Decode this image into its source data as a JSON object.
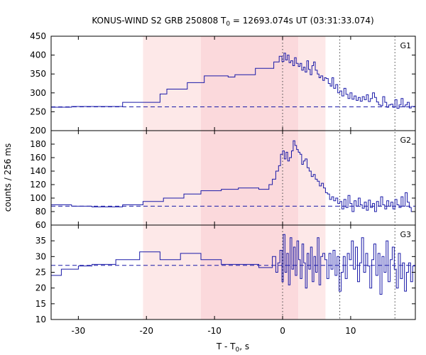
{
  "chart_data": {
    "type": "line",
    "title_main": "KONUS-WIND S2 GRB 250808 T",
    "title_sub": "0",
    "title_rest": " = 12693.074s UT (03:31:33.074)",
    "xlabel_main": "T - T",
    "xlabel_sub": "0",
    "xlabel_rest": ", s",
    "ylabel": "counts / 256 ms",
    "xlim": [
      -34,
      19.5
    ],
    "x_ticks": [
      -30,
      -20,
      -10,
      0,
      10
    ],
    "shaded_regions": [
      {
        "x": [
          -20.5,
          -12
        ],
        "color": "#fde8e8"
      },
      {
        "x": [
          -12,
          0
        ],
        "color": "#fbd9dc"
      },
      {
        "x": [
          0,
          2.3
        ],
        "color": "#fbd9dc"
      },
      {
        "x": [
          2.3,
          6.3
        ],
        "color": "#fde8e8"
      }
    ],
    "vertical_lines": [
      0,
      8.4,
      16.5
    ],
    "panels": [
      {
        "name": "G1",
        "ylim": [
          200,
          450
        ],
        "y_ticks": [
          200,
          250,
          300,
          350,
          400,
          450
        ],
        "background": 263,
        "steps": [
          [
            -34,
            262
          ],
          [
            -31,
            264
          ],
          [
            -23.5,
            275
          ],
          [
            -18,
            297
          ],
          [
            -17,
            310
          ],
          [
            -14,
            327
          ],
          [
            -11.5,
            345
          ],
          [
            -8,
            342
          ],
          [
            -7,
            348
          ],
          [
            -4,
            365
          ],
          [
            -1.3,
            382
          ],
          [
            -0.5,
            397
          ],
          [
            -0.1,
            383
          ],
          [
            0.2,
            405
          ],
          [
            0.45,
            387
          ],
          [
            0.7,
            400
          ],
          [
            0.95,
            380
          ],
          [
            1.2,
            385
          ],
          [
            1.5,
            372
          ],
          [
            1.75,
            393
          ],
          [
            2.0,
            378
          ],
          [
            2.3,
            370
          ],
          [
            2.55,
            378
          ],
          [
            2.8,
            360
          ],
          [
            3.05,
            368
          ],
          [
            3.3,
            355
          ],
          [
            3.55,
            385
          ],
          [
            3.8,
            362
          ],
          [
            4.05,
            348
          ],
          [
            4.3,
            372
          ],
          [
            4.55,
            382
          ],
          [
            4.8,
            360
          ],
          [
            5.1,
            350
          ],
          [
            5.35,
            340
          ],
          [
            5.6,
            345
          ],
          [
            5.9,
            333
          ],
          [
            6.15,
            340
          ],
          [
            6.4,
            338
          ],
          [
            6.7,
            325
          ],
          [
            7.0,
            318
          ],
          [
            7.25,
            340
          ],
          [
            7.5,
            312
          ],
          [
            7.8,
            322
          ],
          [
            8.1,
            300
          ],
          [
            8.4,
            305
          ],
          [
            8.7,
            292
          ],
          [
            9.0,
            312
          ],
          [
            9.3,
            296
          ],
          [
            9.6,
            285
          ],
          [
            9.9,
            300
          ],
          [
            10.2,
            283
          ],
          [
            10.5,
            292
          ],
          [
            10.8,
            280
          ],
          [
            11.1,
            288
          ],
          [
            11.4,
            278
          ],
          [
            11.7,
            290
          ],
          [
            12.0,
            282
          ],
          [
            12.3,
            295
          ],
          [
            12.6,
            277
          ],
          [
            12.9,
            285
          ],
          [
            13.2,
            300
          ],
          [
            13.5,
            288
          ],
          [
            13.8,
            276
          ],
          [
            14.1,
            268
          ],
          [
            14.4,
            266
          ],
          [
            14.7,
            290
          ],
          [
            15.0,
            275
          ],
          [
            15.3,
            262
          ],
          [
            15.6,
            268
          ],
          [
            15.9,
            270
          ],
          [
            16.2,
            262
          ],
          [
            16.5,
            282
          ],
          [
            16.8,
            259
          ],
          [
            17.1,
            268
          ],
          [
            17.4,
            285
          ],
          [
            17.7,
            263
          ],
          [
            18.0,
            268
          ],
          [
            18.3,
            275
          ],
          [
            18.6,
            260
          ],
          [
            18.9,
            264
          ],
          [
            19.5,
            264
          ]
        ]
      },
      {
        "name": "G2",
        "ylim": [
          60,
          200
        ],
        "y_ticks": [
          60,
          80,
          100,
          120,
          140,
          160,
          180
        ],
        "background": 88,
        "steps": [
          [
            -34,
            90
          ],
          [
            -31,
            88
          ],
          [
            -28,
            87
          ],
          [
            -23.5,
            90
          ],
          [
            -20.5,
            95
          ],
          [
            -17.5,
            100
          ],
          [
            -14.5,
            106
          ],
          [
            -12,
            111
          ],
          [
            -9,
            113
          ],
          [
            -6.5,
            115
          ],
          [
            -3.5,
            113
          ],
          [
            -2,
            120
          ],
          [
            -1.5,
            128
          ],
          [
            -1.0,
            140
          ],
          [
            -0.6,
            148
          ],
          [
            -0.3,
            165
          ],
          [
            0.0,
            170
          ],
          [
            0.25,
            158
          ],
          [
            0.5,
            168
          ],
          [
            0.75,
            155
          ],
          [
            1.0,
            160
          ],
          [
            1.3,
            170
          ],
          [
            1.55,
            185
          ],
          [
            1.8,
            178
          ],
          [
            2.05,
            172
          ],
          [
            2.3,
            168
          ],
          [
            2.55,
            165
          ],
          [
            2.8,
            150
          ],
          [
            3.05,
            155
          ],
          [
            3.3,
            158
          ],
          [
            3.6,
            145
          ],
          [
            3.9,
            140
          ],
          [
            4.2,
            132
          ],
          [
            4.5,
            135
          ],
          [
            4.8,
            128
          ],
          [
            5.1,
            125
          ],
          [
            5.4,
            118
          ],
          [
            5.7,
            122
          ],
          [
            6.0,
            115
          ],
          [
            6.3,
            108
          ],
          [
            6.6,
            106
          ],
          [
            6.9,
            98
          ],
          [
            7.2,
            102
          ],
          [
            7.5,
            96
          ],
          [
            7.8,
            100
          ],
          [
            8.1,
            92
          ],
          [
            8.4,
            95
          ],
          [
            8.7,
            84
          ],
          [
            9.0,
            98
          ],
          [
            9.3,
            86
          ],
          [
            9.6,
            104
          ],
          [
            9.9,
            92
          ],
          [
            10.2,
            80
          ],
          [
            10.5,
            96
          ],
          [
            10.8,
            88
          ],
          [
            11.1,
            100
          ],
          [
            11.4,
            90
          ],
          [
            11.7,
            85
          ],
          [
            12.0,
            94
          ],
          [
            12.3,
            82
          ],
          [
            12.6,
            97
          ],
          [
            12.9,
            86
          ],
          [
            13.2,
            92
          ],
          [
            13.5,
            80
          ],
          [
            13.8,
            95
          ],
          [
            14.1,
            88
          ],
          [
            14.4,
            102
          ],
          [
            14.7,
            90
          ],
          [
            15.0,
            84
          ],
          [
            15.3,
            96
          ],
          [
            15.6,
            88
          ],
          [
            15.9,
            94
          ],
          [
            16.2,
            84
          ],
          [
            16.5,
            98
          ],
          [
            16.8,
            90
          ],
          [
            17.1,
            86
          ],
          [
            17.4,
            102
          ],
          [
            17.7,
            88
          ],
          [
            18.0,
            108
          ],
          [
            18.3,
            94
          ],
          [
            18.6,
            86
          ],
          [
            18.9,
            80
          ],
          [
            19.5,
            80
          ]
        ]
      },
      {
        "name": "G3",
        "ylim": [
          10,
          40
        ],
        "y_ticks": [
          10,
          15,
          20,
          25,
          30,
          35
        ],
        "background": 27.2,
        "steps": [
          [
            -34,
            24
          ],
          [
            -32.5,
            26
          ],
          [
            -30,
            27
          ],
          [
            -28,
            27.5
          ],
          [
            -24.5,
            29
          ],
          [
            -21,
            31.5
          ],
          [
            -18,
            29
          ],
          [
            -15,
            31
          ],
          [
            -12,
            29
          ],
          [
            -9,
            27.5
          ],
          [
            -6.5,
            27.5
          ],
          [
            -3.5,
            26.5
          ],
          [
            -1.5,
            30
          ],
          [
            -1.0,
            25
          ],
          [
            -0.7,
            28
          ],
          [
            -0.4,
            32
          ],
          [
            -0.1,
            22
          ],
          [
            0.1,
            37
          ],
          [
            0.35,
            25
          ],
          [
            0.6,
            31
          ],
          [
            0.85,
            21
          ],
          [
            1.1,
            36
          ],
          [
            1.35,
            26
          ],
          [
            1.6,
            33
          ],
          [
            1.85,
            24
          ],
          [
            2.1,
            35
          ],
          [
            2.35,
            29
          ],
          [
            2.6,
            23
          ],
          [
            2.85,
            34
          ],
          [
            3.1,
            28
          ],
          [
            3.35,
            20
          ],
          [
            3.6,
            31
          ],
          [
            3.85,
            26
          ],
          [
            4.1,
            33
          ],
          [
            4.35,
            22
          ],
          [
            4.6,
            30
          ],
          [
            4.85,
            25
          ],
          [
            5.1,
            36
          ],
          [
            5.35,
            21
          ],
          [
            5.6,
            30
          ],
          [
            5.9,
            31
          ],
          [
            6.2,
            29
          ],
          [
            6.5,
            23
          ],
          [
            6.8,
            31
          ],
          [
            7.1,
            26
          ],
          [
            7.4,
            32
          ],
          [
            7.7,
            24
          ],
          [
            8.0,
            30
          ],
          [
            8.3,
            19
          ],
          [
            8.6,
            25
          ],
          [
            8.9,
            30
          ],
          [
            9.2,
            23
          ],
          [
            9.5,
            31
          ],
          [
            9.8,
            29
          ],
          [
            10.1,
            35
          ],
          [
            10.4,
            26
          ],
          [
            10.7,
            33
          ],
          [
            11.0,
            22
          ],
          [
            11.3,
            28
          ],
          [
            11.6,
            36
          ],
          [
            11.9,
            25
          ],
          [
            12.2,
            31
          ],
          [
            12.5,
            27
          ],
          [
            12.8,
            20
          ],
          [
            13.1,
            29
          ],
          [
            13.4,
            34
          ],
          [
            13.7,
            24
          ],
          [
            14.0,
            31
          ],
          [
            14.3,
            18
          ],
          [
            14.6,
            30
          ],
          [
            14.9,
            25
          ],
          [
            15.2,
            35
          ],
          [
            15.5,
            22
          ],
          [
            15.8,
            29
          ],
          [
            16.1,
            33
          ],
          [
            16.4,
            26
          ],
          [
            16.7,
            20
          ],
          [
            17.0,
            31
          ],
          [
            17.3,
            23
          ],
          [
            17.6,
            28
          ],
          [
            17.9,
            19
          ],
          [
            18.2,
            25
          ],
          [
            18.5,
            28
          ],
          [
            18.8,
            22
          ],
          [
            19.1,
            27
          ],
          [
            19.5,
            27
          ]
        ]
      }
    ]
  }
}
